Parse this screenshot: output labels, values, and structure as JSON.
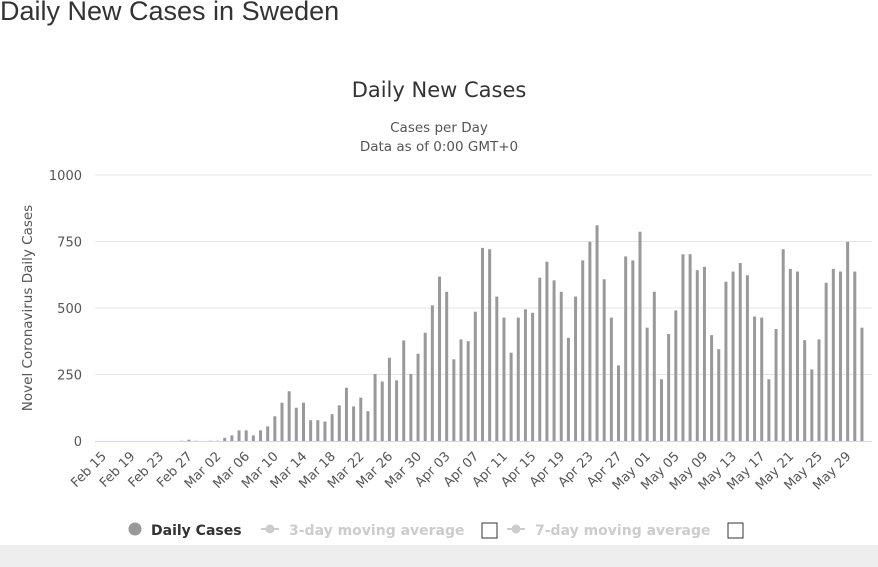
{
  "page": {
    "title": "Daily New Cases in Sweden"
  },
  "chart_data": {
    "type": "bar",
    "title": "Daily New Cases",
    "subtitle_lines": [
      "Cases per Day",
      "Data as of 0:00 GMT+0"
    ],
    "ylabel": "Novel Coronavirus Daily Cases",
    "xlabel": "",
    "ylim": [
      0,
      1000
    ],
    "yticks": [
      0,
      250,
      500,
      750,
      1000
    ],
    "grid": true,
    "start_date": "2020-02-15",
    "xtick_labels": [
      "Feb 15",
      "Feb 19",
      "Feb 23",
      "Feb 27",
      "Mar 02",
      "Mar 06",
      "Mar 10",
      "Mar 14",
      "Mar 18",
      "Mar 22",
      "Mar 26",
      "Mar 30",
      "Apr 03",
      "Apr 07",
      "Apr 11",
      "Apr 15",
      "Apr 19",
      "Apr 23",
      "Apr 27",
      "May 01",
      "May 05",
      "May 09",
      "May 13",
      "May 17",
      "May 21",
      "May 25",
      "May 29"
    ],
    "series": [
      {
        "name": "Daily Cases",
        "color": "#999999",
        "values": [
          0,
          0,
          0,
          0,
          0,
          0,
          0,
          0,
          0,
          0,
          0,
          1,
          5,
          1,
          0,
          1,
          1,
          12,
          21,
          40,
          40,
          21,
          40,
          55,
          93,
          144,
          187,
          125,
          144,
          78,
          78,
          73,
          101,
          134,
          200,
          130,
          163,
          112,
          252,
          224,
          313,
          228,
          378,
          252,
          328,
          407,
          510,
          618,
          561,
          307,
          382,
          375,
          486,
          726,
          721,
          543,
          464,
          332,
          464,
          495,
          482,
          614,
          674,
          604,
          561,
          388,
          543,
          679,
          749,
          811,
          608,
          464,
          284,
          694,
          679,
          787,
          426,
          561,
          232,
          402,
          491,
          702,
          702,
          642,
          655,
          398,
          345,
          599,
          637,
          669,
          623,
          468,
          464,
          232,
          421,
          721,
          647,
          637,
          379,
          269,
          382,
          595,
          647,
          637,
          749,
          637,
          426
        ]
      }
    ],
    "legend": {
      "placement": "bottom",
      "items": [
        {
          "label": "Daily Cases",
          "color": "#999999",
          "active": true
        },
        {
          "label": "3-day moving average",
          "color": "#cccccc",
          "active": false
        },
        {
          "label": "7-day moving average",
          "color": "#cccccc",
          "active": false
        }
      ]
    }
  }
}
